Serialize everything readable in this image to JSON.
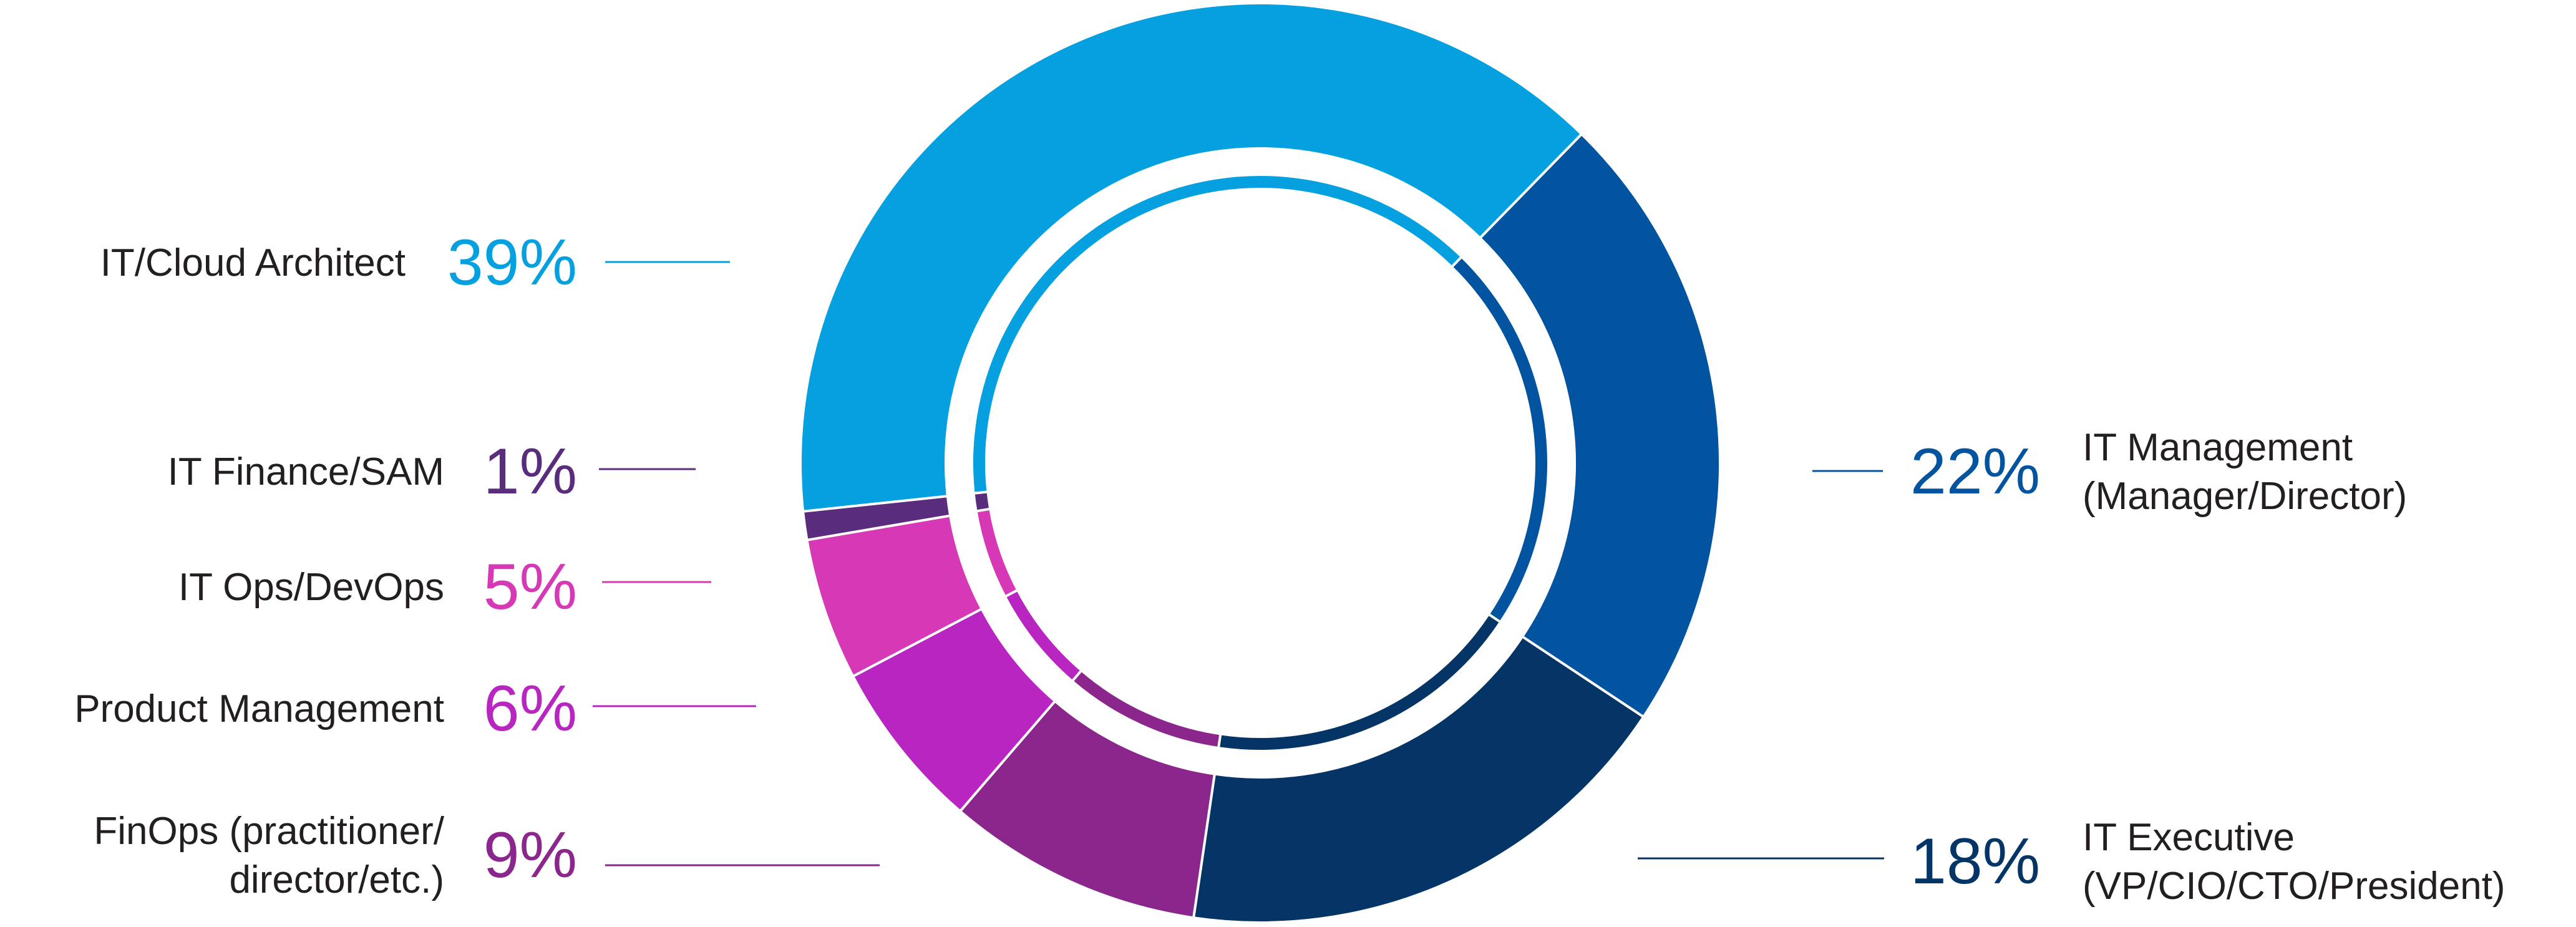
{
  "chart_data": {
    "type": "pie",
    "style": "donut",
    "unit": "%",
    "legend_placement": "labels beside slices",
    "slices": [
      {
        "label": [
          "IT/Cloud Architect"
        ],
        "value": 39,
        "color": "#04A0E0"
      },
      {
        "label": [
          "IT Management",
          "(Manager/Director)"
        ],
        "value": 22,
        "color": "#0254A0"
      },
      {
        "label": [
          "IT Executive",
          "(VP/CIO/CTO/President)"
        ],
        "value": 18,
        "color": "#053567"
      },
      {
        "label": [
          "FinOps (practitioner/",
          "director/etc.)"
        ],
        "value": 9,
        "color": "#8B268C"
      },
      {
        "label": [
          "Product Management"
        ],
        "value": 6,
        "color": "#B825C0"
      },
      {
        "label": [
          "IT Ops/DevOps"
        ],
        "value": 5,
        "color": "#D739B6"
      },
      {
        "label": [
          "IT Finance/SAM"
        ],
        "value": 1,
        "color": "#5A2C7E"
      }
    ]
  }
}
